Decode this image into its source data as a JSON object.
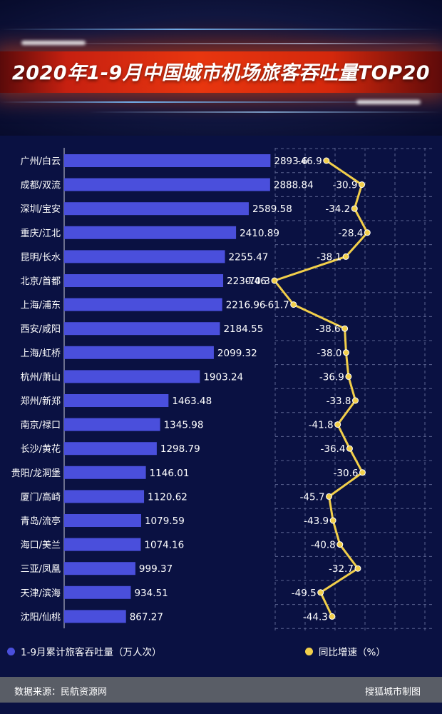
{
  "title": "2020年1-9月中国城市机场旅客吞吐量TOP20",
  "colors": {
    "bar": "#4a4fdc",
    "line": "#f2cf4a",
    "background": "#0a1142",
    "banner": "#e8360f",
    "footer": "#595d66"
  },
  "chart_data": {
    "type": "bar",
    "orientation": "horizontal",
    "title": "2020年1-9月中国城市机场旅客吞吐量TOP20",
    "categories": [
      "广州/白云",
      "成都/双流",
      "深圳/宝安",
      "重庆/江北",
      "昆明/长水",
      "北京/首都",
      "上海/浦东",
      "西安/咸阳",
      "上海/虹桥",
      "杭州/萧山",
      "郑州/新郑",
      "南京/禄口",
      "长沙/黄花",
      "贵阳/龙洞堡",
      "厦门/高崎",
      "青岛/流亭",
      "海口/美兰",
      "三亚/凤凰",
      "天津/滨海",
      "沈阳/仙桃"
    ],
    "series": [
      {
        "name": "1-9月累计旅客吞吐量（万人次）",
        "type": "bar",
        "values": [
          2893.6,
          2888.84,
          2589.58,
          2410.89,
          2255.47,
          2230.46,
          2216.96,
          2184.55,
          2099.32,
          1903.24,
          1463.48,
          1345.98,
          1298.79,
          1146.01,
          1120.62,
          1079.59,
          1074.16,
          999.37,
          934.51,
          867.27
        ],
        "labels": [
          "2893.6",
          "2888.84",
          "2589.58",
          "2410.89",
          "2255.47",
          "2230.46",
          "2216.96",
          "2184.55",
          "2099.32",
          "1903.24",
          "1463.48",
          "1345.98",
          "1298.79",
          "1146.01",
          "1120.62",
          "1079.59",
          "1074.16",
          "999.37",
          "934.51",
          "867.27"
        ]
      },
      {
        "name": "同比增速（%）",
        "type": "line",
        "values": [
          -46.9,
          -30.9,
          -34.2,
          -28.4,
          -38.1,
          -70.3,
          -61.7,
          -38.6,
          -38.0,
          -36.9,
          -33.8,
          -41.8,
          -36.4,
          -30.6,
          -45.7,
          -43.9,
          -40.8,
          -32.7,
          -49.5,
          -44.3
        ],
        "labels": [
          "-46.9",
          "-30.9",
          "-34.2",
          "-28.4",
          "-38.1",
          "-70.3",
          "-61.7",
          "-38.6",
          "-38.0",
          "-36.9",
          "-33.8",
          "-41.8",
          "-36.4",
          "-30.6",
          "-45.7",
          "-43.9",
          "-40.8",
          "-32.7",
          "-49.5",
          "-44.3"
        ]
      }
    ],
    "bar_xlim": [
      0,
      3700
    ],
    "line_xlim": [
      -73,
      -15
    ],
    "grid": true,
    "legend_position": "bottom"
  },
  "legend": {
    "bars_label": "1-9月累计旅客吞吐量（万人次）",
    "line_label": "同比增速（%）"
  },
  "footer": {
    "source": "数据来源：民航资源网",
    "credit": "搜狐城市制图"
  }
}
